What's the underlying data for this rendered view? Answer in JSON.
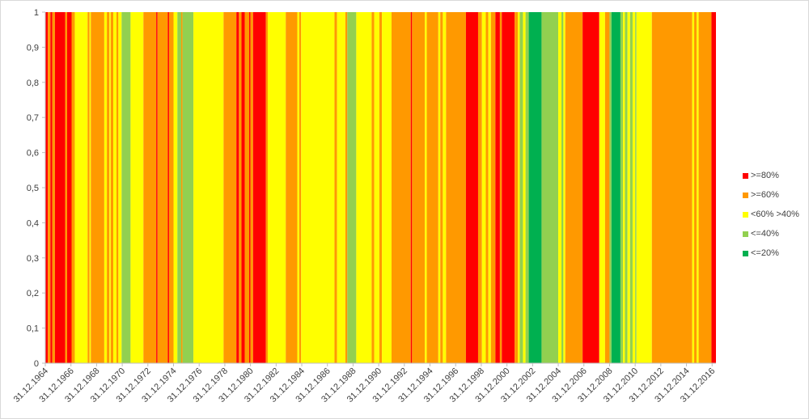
{
  "chart_data": {
    "type": "bar",
    "title": "",
    "xlabel": "",
    "ylabel": "",
    "ylim": [
      0,
      1
    ],
    "y_ticks": [
      "0",
      "0,1",
      "0,2",
      "0,3",
      "0,4",
      "0,5",
      "0,6",
      "0,7",
      "0,8",
      "0,9",
      "1"
    ],
    "x_ticks": [
      "31.12.1964",
      "31.12.1966",
      "31.12.1968",
      "31.12.1970",
      "31.12.1972",
      "31.12.1974",
      "31.12.1976",
      "31.12.1978",
      "31.12.1980",
      "31.12.1982",
      "31.12.1984",
      "31.12.1986",
      "31.12.1988",
      "31.12.1990",
      "31.12.1992",
      "31.12.1994",
      "31.12.1996",
      "31.12.1998",
      "31.12.2000",
      "31.12.2002",
      "31.12.2004",
      "31.12.2006",
      "31.12.2008",
      "31.12.2010",
      "31.12.2012",
      "31.12.2014",
      "31.12.2016"
    ],
    "x_range": [
      1964.0,
      2016.3
    ],
    "grid": false,
    "legend_position": "right",
    "categories": [
      {
        "key": "ge80",
        "label": ">=80%",
        "color": "#ff0000"
      },
      {
        "key": "ge60",
        "label": ">=60%",
        "color": "#ff9900"
      },
      {
        "key": "mid",
        "label": "<60% >40%",
        "color": "#ffff00"
      },
      {
        "key": "le40",
        "label": "<=40%",
        "color": "#92d050"
      },
      {
        "key": "le20",
        "label": "<=20%",
        "color": "#00b050"
      }
    ],
    "segments": [
      {
        "from": 1964.0,
        "to": 1964.2,
        "category": "ge80"
      },
      {
        "from": 1964.2,
        "to": 1964.4,
        "category": "ge60"
      },
      {
        "from": 1964.4,
        "to": 1964.55,
        "category": "ge80"
      },
      {
        "from": 1964.55,
        "to": 1964.75,
        "category": "ge60"
      },
      {
        "from": 1964.75,
        "to": 1965.55,
        "category": "ge80"
      },
      {
        "from": 1965.55,
        "to": 1965.7,
        "category": "ge60"
      },
      {
        "from": 1965.7,
        "to": 1966.05,
        "category": "ge80"
      },
      {
        "from": 1966.05,
        "to": 1966.3,
        "category": "ge60"
      },
      {
        "from": 1966.3,
        "to": 1967.3,
        "category": "mid"
      },
      {
        "from": 1967.3,
        "to": 1967.45,
        "category": "ge60"
      },
      {
        "from": 1967.45,
        "to": 1967.55,
        "category": "mid"
      },
      {
        "from": 1967.55,
        "to": 1968.6,
        "category": "ge60"
      },
      {
        "from": 1968.6,
        "to": 1968.8,
        "category": "mid"
      },
      {
        "from": 1968.8,
        "to": 1969.0,
        "category": "ge60"
      },
      {
        "from": 1969.0,
        "to": 1969.1,
        "category": "mid"
      },
      {
        "from": 1969.1,
        "to": 1969.3,
        "category": "ge60"
      },
      {
        "from": 1969.3,
        "to": 1969.55,
        "category": "mid"
      },
      {
        "from": 1969.55,
        "to": 1969.7,
        "category": "ge60"
      },
      {
        "from": 1969.7,
        "to": 1969.95,
        "category": "mid"
      },
      {
        "from": 1969.95,
        "to": 1970.65,
        "category": "le40"
      },
      {
        "from": 1970.65,
        "to": 1971.65,
        "category": "mid"
      },
      {
        "from": 1971.65,
        "to": 1972.65,
        "category": "ge60"
      },
      {
        "from": 1972.65,
        "to": 1972.75,
        "category": "ge80"
      },
      {
        "from": 1972.75,
        "to": 1973.55,
        "category": "ge60"
      },
      {
        "from": 1973.55,
        "to": 1973.65,
        "category": "ge80"
      },
      {
        "from": 1973.65,
        "to": 1974.0,
        "category": "ge60"
      },
      {
        "from": 1974.0,
        "to": 1974.3,
        "category": "mid"
      },
      {
        "from": 1974.3,
        "to": 1974.6,
        "category": "le40"
      },
      {
        "from": 1974.6,
        "to": 1974.7,
        "category": "ge60"
      },
      {
        "from": 1974.7,
        "to": 1975.55,
        "category": "le40"
      },
      {
        "from": 1975.55,
        "to": 1977.9,
        "category": "mid"
      },
      {
        "from": 1977.9,
        "to": 1978.9,
        "category": "ge60"
      },
      {
        "from": 1978.9,
        "to": 1979.1,
        "category": "ge80"
      },
      {
        "from": 1979.1,
        "to": 1979.3,
        "category": "ge60"
      },
      {
        "from": 1979.3,
        "to": 1979.55,
        "category": "ge80"
      },
      {
        "from": 1979.55,
        "to": 1979.9,
        "category": "ge60"
      },
      {
        "from": 1979.9,
        "to": 1980.0,
        "category": "ge80"
      },
      {
        "from": 1980.0,
        "to": 1980.2,
        "category": "ge60"
      },
      {
        "from": 1980.2,
        "to": 1981.2,
        "category": "ge80"
      },
      {
        "from": 1981.2,
        "to": 1981.35,
        "category": "ge60"
      },
      {
        "from": 1981.35,
        "to": 1982.75,
        "category": "mid"
      },
      {
        "from": 1982.75,
        "to": 1983.65,
        "category": "ge60"
      },
      {
        "from": 1983.65,
        "to": 1983.8,
        "category": "mid"
      },
      {
        "from": 1983.8,
        "to": 1983.95,
        "category": "ge60"
      },
      {
        "from": 1983.95,
        "to": 1986.55,
        "category": "mid"
      },
      {
        "from": 1986.55,
        "to": 1986.75,
        "category": "ge60"
      },
      {
        "from": 1986.75,
        "to": 1987.4,
        "category": "mid"
      },
      {
        "from": 1987.4,
        "to": 1987.55,
        "category": "ge60"
      },
      {
        "from": 1987.55,
        "to": 1988.25,
        "category": "le40"
      },
      {
        "from": 1988.25,
        "to": 1989.45,
        "category": "mid"
      },
      {
        "from": 1989.45,
        "to": 1989.65,
        "category": "ge60"
      },
      {
        "from": 1989.65,
        "to": 1990.05,
        "category": "mid"
      },
      {
        "from": 1990.05,
        "to": 1990.25,
        "category": "ge60"
      },
      {
        "from": 1990.25,
        "to": 1991.0,
        "category": "mid"
      },
      {
        "from": 1991.0,
        "to": 1992.5,
        "category": "ge60"
      },
      {
        "from": 1992.5,
        "to": 1992.6,
        "category": "ge80"
      },
      {
        "from": 1992.6,
        "to": 1993.6,
        "category": "ge60"
      },
      {
        "from": 1993.6,
        "to": 1993.75,
        "category": "mid"
      },
      {
        "from": 1993.75,
        "to": 1994.65,
        "category": "ge60"
      },
      {
        "from": 1994.65,
        "to": 1994.8,
        "category": "mid"
      },
      {
        "from": 1994.8,
        "to": 1995.0,
        "category": "ge60"
      },
      {
        "from": 1995.0,
        "to": 1995.25,
        "category": "mid"
      },
      {
        "from": 1995.25,
        "to": 1996.8,
        "category": "ge60"
      },
      {
        "from": 1996.8,
        "to": 1997.75,
        "category": "ge80"
      },
      {
        "from": 1997.75,
        "to": 1998.05,
        "category": "ge60"
      },
      {
        "from": 1998.05,
        "to": 1998.35,
        "category": "mid"
      },
      {
        "from": 1998.35,
        "to": 1998.55,
        "category": "ge60"
      },
      {
        "from": 1998.55,
        "to": 1998.75,
        "category": "mid"
      },
      {
        "from": 1998.75,
        "to": 1999.1,
        "category": "ge60"
      },
      {
        "from": 1999.1,
        "to": 1999.45,
        "category": "ge80"
      },
      {
        "from": 1999.45,
        "to": 1999.6,
        "category": "ge60"
      },
      {
        "from": 1999.6,
        "to": 2000.6,
        "category": "ge80"
      },
      {
        "from": 2000.6,
        "to": 2000.85,
        "category": "ge60"
      },
      {
        "from": 2000.85,
        "to": 2001.0,
        "category": "mid"
      },
      {
        "from": 2001.0,
        "to": 2001.25,
        "category": "le40"
      },
      {
        "from": 2001.25,
        "to": 2001.45,
        "category": "mid"
      },
      {
        "from": 2001.45,
        "to": 2001.7,
        "category": "le40"
      },
      {
        "from": 2001.7,
        "to": 2002.7,
        "category": "le20"
      },
      {
        "from": 2002.7,
        "to": 2004.0,
        "category": "le40"
      },
      {
        "from": 2004.0,
        "to": 2004.25,
        "category": "mid"
      },
      {
        "from": 2004.25,
        "to": 2004.4,
        "category": "le40"
      },
      {
        "from": 2004.4,
        "to": 2004.55,
        "category": "mid"
      },
      {
        "from": 2004.55,
        "to": 2005.9,
        "category": "ge60"
      },
      {
        "from": 2005.9,
        "to": 2007.2,
        "category": "ge80"
      },
      {
        "from": 2007.2,
        "to": 2007.65,
        "category": "mid"
      },
      {
        "from": 2007.65,
        "to": 2008.0,
        "category": "ge60"
      },
      {
        "from": 2008.0,
        "to": 2008.15,
        "category": "le40"
      },
      {
        "from": 2008.15,
        "to": 2008.85,
        "category": "le20"
      },
      {
        "from": 2008.85,
        "to": 2009.05,
        "category": "le40"
      },
      {
        "from": 2009.05,
        "to": 2009.2,
        "category": "mid"
      },
      {
        "from": 2009.2,
        "to": 2009.4,
        "category": "le40"
      },
      {
        "from": 2009.4,
        "to": 2009.6,
        "category": "mid"
      },
      {
        "from": 2009.6,
        "to": 2009.8,
        "category": "le40"
      },
      {
        "from": 2009.8,
        "to": 2010.0,
        "category": "mid"
      },
      {
        "from": 2010.0,
        "to": 2010.1,
        "category": "le40"
      },
      {
        "from": 2010.1,
        "to": 2011.3,
        "category": "mid"
      },
      {
        "from": 2011.3,
        "to": 2014.45,
        "category": "ge60"
      },
      {
        "from": 2014.45,
        "to": 2014.6,
        "category": "mid"
      },
      {
        "from": 2014.6,
        "to": 2014.8,
        "category": "ge60"
      },
      {
        "from": 2014.8,
        "to": 2014.95,
        "category": "mid"
      },
      {
        "from": 2014.95,
        "to": 2015.95,
        "category": "ge60"
      },
      {
        "from": 2015.95,
        "to": 2016.3,
        "category": "ge80"
      }
    ]
  }
}
